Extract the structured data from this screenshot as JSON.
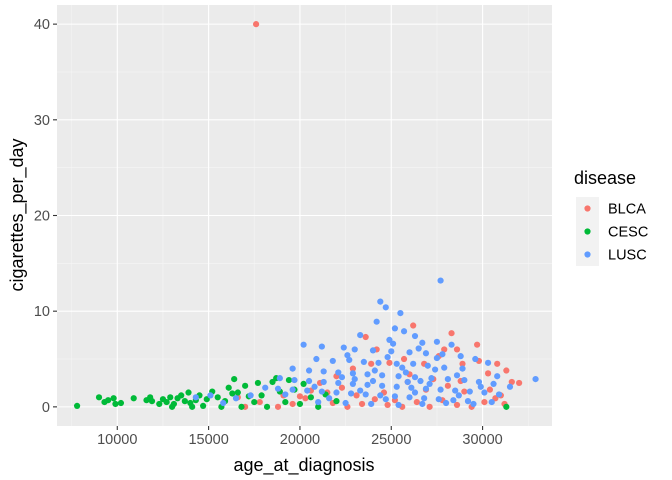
{
  "chart_data": {
    "type": "scatter",
    "xlabel": "age_at_diagnosis",
    "ylabel": "cigarettes_per_day",
    "xlim": [
      6700,
      33800
    ],
    "ylim": [
      -2,
      42
    ],
    "x_ticks": [
      10000,
      15000,
      20000,
      25000,
      30000
    ],
    "x_tick_labels": [
      "10000",
      "15000",
      "20000",
      "25000",
      "30000"
    ],
    "y_ticks": [
      0,
      10,
      20,
      30,
      40
    ],
    "y_tick_labels": [
      "0",
      "10",
      "20",
      "30",
      "40"
    ],
    "grid": true,
    "legend_title": "disease",
    "legend_position": "right",
    "series": [
      {
        "name": "BLCA",
        "color": "#F8766D",
        "points": [
          [
            17600,
            40.0
          ],
          [
            23600,
            7.3
          ],
          [
            26200,
            8.5
          ],
          [
            28300,
            7.7
          ],
          [
            28600,
            6.0
          ],
          [
            27900,
            6.0
          ],
          [
            29700,
            6.5
          ],
          [
            24200,
            6.0
          ],
          [
            30800,
            4.5
          ],
          [
            31300,
            3.8
          ],
          [
            31600,
            2.6
          ],
          [
            32000,
            2.5
          ],
          [
            30300,
            3.5
          ],
          [
            29800,
            4.8
          ],
          [
            28900,
            4.5
          ],
          [
            27600,
            5.3
          ],
          [
            26800,
            4.5
          ],
          [
            25700,
            5.0
          ],
          [
            24900,
            4.6
          ],
          [
            23900,
            4.5
          ],
          [
            22900,
            4.0
          ],
          [
            22000,
            3.2
          ],
          [
            21100,
            2.5
          ],
          [
            20600,
            1.7
          ],
          [
            20000,
            1.1
          ],
          [
            19600,
            0.3
          ],
          [
            18800,
            0.0
          ],
          [
            17800,
            0.5
          ],
          [
            17000,
            0.0
          ],
          [
            16600,
            1.0
          ],
          [
            21800,
            0.4
          ],
          [
            22600,
            0.0
          ],
          [
            23400,
            0.3
          ],
          [
            24100,
            0.8
          ],
          [
            24800,
            0.2
          ],
          [
            25600,
            0.0
          ],
          [
            26400,
            0.5
          ],
          [
            27100,
            0.0
          ],
          [
            27800,
            0.7
          ],
          [
            28600,
            0.2
          ],
          [
            29400,
            0.0
          ],
          [
            30100,
            0.5
          ],
          [
            30700,
            0.9
          ],
          [
            31200,
            0.3
          ],
          [
            29000,
            1.6
          ],
          [
            28100,
            2.2
          ],
          [
            26900,
            1.8
          ],
          [
            25900,
            2.6
          ],
          [
            24600,
            1.5
          ],
          [
            23100,
            1.2
          ],
          [
            21500,
            1.5
          ],
          [
            20300,
            0.9
          ],
          [
            19100,
            1.2
          ],
          [
            26000,
            3.4
          ],
          [
            27300,
            2.9
          ],
          [
            28800,
            2.7
          ],
          [
            30400,
            1.8
          ],
          [
            31000,
            1.2
          ],
          [
            25200,
            0.7
          ],
          [
            22300,
            2.0
          ]
        ]
      },
      {
        "name": "CESC",
        "color": "#00BA38",
        "points": [
          [
            7800,
            0.1
          ],
          [
            9000,
            1.0
          ],
          [
            9300,
            0.5
          ],
          [
            9500,
            0.7
          ],
          [
            9800,
            0.9
          ],
          [
            9900,
            0.3
          ],
          [
            10200,
            0.4
          ],
          [
            10900,
            0.9
          ],
          [
            11600,
            0.7
          ],
          [
            11800,
            1.0
          ],
          [
            11900,
            0.6
          ],
          [
            12300,
            0.3
          ],
          [
            12500,
            0.8
          ],
          [
            12700,
            0.5
          ],
          [
            12900,
            1.0
          ],
          [
            13100,
            0.3
          ],
          [
            13300,
            0.9
          ],
          [
            13500,
            1.2
          ],
          [
            13700,
            0.6
          ],
          [
            13900,
            1.5
          ],
          [
            14000,
            0.4
          ],
          [
            14100,
            0.0
          ],
          [
            14300,
            0.7
          ],
          [
            14500,
            1.2
          ],
          [
            14900,
            0.8
          ],
          [
            15200,
            1.6
          ],
          [
            15500,
            1.0
          ],
          [
            15700,
            0.0
          ],
          [
            15900,
            0.6
          ],
          [
            16100,
            2.0
          ],
          [
            16300,
            1.4
          ],
          [
            16400,
            2.9
          ],
          [
            16600,
            1.5
          ],
          [
            16800,
            0.0
          ],
          [
            17000,
            2.2
          ],
          [
            17200,
            1.1
          ],
          [
            17500,
            0.5
          ],
          [
            17700,
            2.5
          ],
          [
            17900,
            1.2
          ],
          [
            18200,
            0.0
          ],
          [
            18500,
            2.6
          ],
          [
            18700,
            3.0
          ],
          [
            18900,
            1.6
          ],
          [
            19200,
            0.5
          ],
          [
            19400,
            2.8
          ],
          [
            19700,
            1.8
          ],
          [
            20000,
            0.3
          ],
          [
            20200,
            2.4
          ],
          [
            20600,
            1.0
          ],
          [
            21000,
            0.0
          ],
          [
            21400,
            1.3
          ],
          [
            22000,
            0.6
          ],
          [
            31300,
            0.0
          ],
          [
            14700,
            0.1
          ],
          [
            13000,
            0.0
          ]
        ]
      },
      {
        "name": "LUSC",
        "color": "#619CFF",
        "points": [
          [
            27700,
            13.2
          ],
          [
            24400,
            11.0
          ],
          [
            24700,
            10.4
          ],
          [
            25500,
            9.8
          ],
          [
            24200,
            8.9
          ],
          [
            25200,
            8.2
          ],
          [
            25700,
            7.9
          ],
          [
            23300,
            7.5
          ],
          [
            26300,
            7.4
          ],
          [
            24900,
            7.0
          ],
          [
            26700,
            6.7
          ],
          [
            27500,
            6.8
          ],
          [
            28300,
            6.5
          ],
          [
            20200,
            6.5
          ],
          [
            21200,
            6.3
          ],
          [
            22400,
            6.2
          ],
          [
            23000,
            6.0
          ],
          [
            24000,
            5.9
          ],
          [
            25000,
            5.8
          ],
          [
            26000,
            5.7
          ],
          [
            26900,
            5.6
          ],
          [
            27800,
            5.5
          ],
          [
            28800,
            5.3
          ],
          [
            29600,
            5.0
          ],
          [
            30300,
            4.6
          ],
          [
            20900,
            5.0
          ],
          [
            21800,
            4.8
          ],
          [
            22700,
            4.9
          ],
          [
            23500,
            4.7
          ],
          [
            24300,
            4.6
          ],
          [
            25300,
            4.5
          ],
          [
            26200,
            4.5
          ],
          [
            27000,
            4.3
          ],
          [
            27900,
            4.1
          ],
          [
            28900,
            4.0
          ],
          [
            19600,
            4.0
          ],
          [
            20500,
            3.8
          ],
          [
            21300,
            3.7
          ],
          [
            22100,
            3.6
          ],
          [
            22900,
            3.5
          ],
          [
            23700,
            3.4
          ],
          [
            24500,
            3.3
          ],
          [
            25400,
            3.2
          ],
          [
            26300,
            3.1
          ],
          [
            27200,
            3.0
          ],
          [
            28100,
            2.9
          ],
          [
            29000,
            2.8
          ],
          [
            29800,
            2.6
          ],
          [
            30600,
            2.4
          ],
          [
            18900,
            3.0
          ],
          [
            19700,
            2.8
          ],
          [
            20500,
            2.7
          ],
          [
            21300,
            2.6
          ],
          [
            22100,
            2.5
          ],
          [
            22900,
            2.4
          ],
          [
            23700,
            2.3
          ],
          [
            24500,
            2.2
          ],
          [
            25300,
            2.1
          ],
          [
            26100,
            2.0
          ],
          [
            26900,
            1.9
          ],
          [
            27700,
            1.8
          ],
          [
            28500,
            1.7
          ],
          [
            29300,
            1.6
          ],
          [
            30100,
            1.5
          ],
          [
            30900,
            1.3
          ],
          [
            18100,
            2.0
          ],
          [
            18800,
            1.9
          ],
          [
            19600,
            1.8
          ],
          [
            20400,
            1.7
          ],
          [
            21200,
            1.6
          ],
          [
            22000,
            1.5
          ],
          [
            22800,
            1.4
          ],
          [
            23600,
            1.3
          ],
          [
            24400,
            1.2
          ],
          [
            25200,
            1.1
          ],
          [
            26000,
            1.0
          ],
          [
            26800,
            0.9
          ],
          [
            27600,
            0.8
          ],
          [
            28400,
            0.7
          ],
          [
            29200,
            0.6
          ],
          [
            17300,
            1.2
          ],
          [
            16500,
            0.9
          ],
          [
            15800,
            0.4
          ],
          [
            15100,
            1.2
          ],
          [
            14300,
            1.0
          ],
          [
            21000,
            0.5
          ],
          [
            22500,
            0.4
          ],
          [
            23900,
            0.3
          ],
          [
            25400,
            0.2
          ],
          [
            26700,
            0.3
          ],
          [
            28000,
            0.4
          ],
          [
            29500,
            0.3
          ],
          [
            30500,
            0.5
          ],
          [
            23000,
            2.9
          ],
          [
            24100,
            3.8
          ],
          [
            25800,
            3.6
          ],
          [
            26600,
            2.7
          ],
          [
            27400,
            3.9
          ],
          [
            28600,
            3.3
          ],
          [
            22600,
            5.4
          ],
          [
            24800,
            5.2
          ],
          [
            26500,
            6.1
          ],
          [
            25100,
            6.6
          ],
          [
            32900,
            2.9
          ],
          [
            31500,
            2.1
          ],
          [
            30800,
            3.2
          ],
          [
            19200,
            1.3
          ],
          [
            20800,
            2.1
          ],
          [
            21600,
            0.9
          ],
          [
            23300,
            1.7
          ],
          [
            24700,
            0.8
          ],
          [
            25900,
            2.6
          ],
          [
            27100,
            2.4
          ],
          [
            28700,
            1.2
          ],
          [
            29900,
            2.1
          ],
          [
            26300,
            1.5
          ],
          [
            24000,
            2.7
          ],
          [
            22300,
            3.1
          ],
          [
            27500,
            5.1
          ],
          [
            25600,
            4.1
          ]
        ]
      }
    ]
  }
}
